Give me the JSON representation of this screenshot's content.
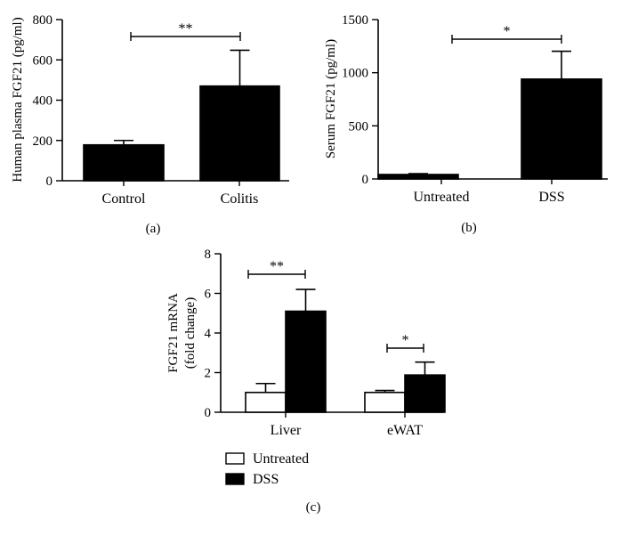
{
  "chart_data": [
    {
      "type": "bar",
      "panel_label": "(a)",
      "ylabel": "Human plasma FGF21 (pg/ml)",
      "ylim": [
        0,
        800
      ],
      "yticks": [
        "0",
        "200",
        "400",
        "600",
        "800"
      ],
      "categories": [
        "Control",
        "Colitis"
      ],
      "series": [
        {
          "name": "FGF21",
          "values": [
            178,
            470
          ],
          "errors": [
            22,
            178
          ],
          "color": "#000000"
        }
      ],
      "significance": [
        {
          "between": [
            "Control",
            "Colitis"
          ],
          "label": "**"
        }
      ]
    },
    {
      "type": "bar",
      "panel_label": "(b)",
      "ylabel": "Serum FGF21 (pg/ml)",
      "ylim": [
        0,
        1500
      ],
      "yticks": [
        "0",
        "500",
        "1000",
        "1500"
      ],
      "categories": [
        "Untreated",
        "DSS"
      ],
      "series": [
        {
          "name": "FGF21",
          "values": [
            42,
            940
          ],
          "errors": [
            8,
            262
          ],
          "color": "#000000"
        }
      ],
      "significance": [
        {
          "between": [
            "Untreated",
            "DSS"
          ],
          "label": "*"
        }
      ]
    },
    {
      "type": "bar",
      "panel_label": "(c)",
      "ylabel": [
        "FGF21 mRNA",
        "(fold change)"
      ],
      "ylim": [
        0,
        8
      ],
      "yticks": [
        "0",
        "2",
        "4",
        "6",
        "8"
      ],
      "categories": [
        "Liver",
        "eWAT"
      ],
      "series": [
        {
          "name": "Untreated",
          "values": [
            1.0,
            1.0
          ],
          "errors": [
            0.45,
            0.1
          ],
          "color": "#ffffff"
        },
        {
          "name": "DSS",
          "values": [
            5.1,
            1.88
          ],
          "errors": [
            1.1,
            0.65
          ],
          "color": "#000000"
        }
      ],
      "significance": [
        {
          "between": [
            "Liver"
          ],
          "label": "**"
        },
        {
          "between": [
            "eWAT"
          ],
          "label": "*"
        }
      ],
      "legend": [
        "Untreated",
        "DSS"
      ]
    }
  ]
}
